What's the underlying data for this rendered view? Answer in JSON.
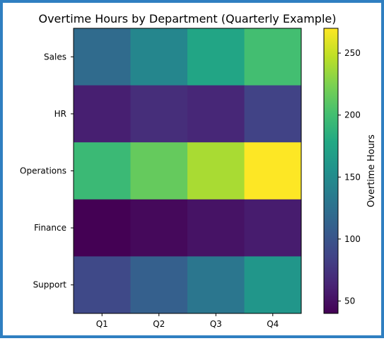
{
  "chart_data": {
    "type": "heatmap",
    "title": "Overtime Hours by Department (Quarterly Example)",
    "x_categories": [
      "Q1",
      "Q2",
      "Q3",
      "Q4"
    ],
    "y_categories": [
      "Sales",
      "HR",
      "Operations",
      "Finance",
      "Support"
    ],
    "values": [
      [
        120,
        145,
        175,
        200
      ],
      [
        60,
        70,
        65,
        85
      ],
      [
        195,
        215,
        240,
        270
      ],
      [
        40,
        45,
        52,
        58
      ],
      [
        90,
        110,
        130,
        160
      ]
    ],
    "colorbar": {
      "label": "Overtime Hours",
      "vmin": 40,
      "vmax": 270,
      "ticks": [
        50,
        100,
        150,
        200,
        250
      ]
    },
    "colormap": "viridis",
    "grid": false
  }
}
